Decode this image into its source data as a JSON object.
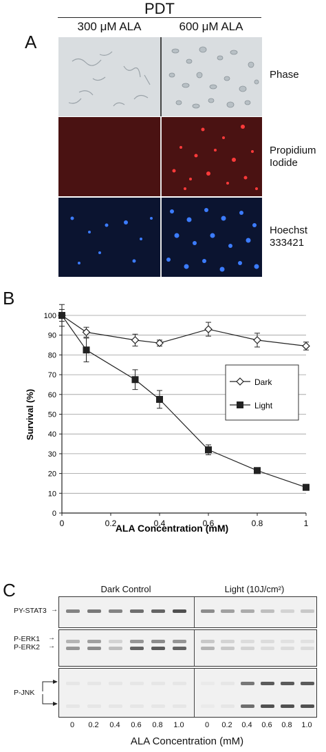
{
  "panel_a": {
    "letter": "A",
    "title": "PDT",
    "col_headers": [
      "300 μM ALA",
      "600 μM ALA"
    ],
    "rows": [
      {
        "label_lines": [
          "Phase"
        ]
      },
      {
        "label_lines": [
          "Propidium",
          "Iodide"
        ]
      },
      {
        "label_lines": [
          "Hoechst",
          "333421"
        ]
      }
    ]
  },
  "panel_b": {
    "letter": "B",
    "chart_data": {
      "type": "line",
      "xlabel": "ALA Concentration (mM)",
      "ylabel": "Survival (%)",
      "xlim": [
        0,
        1
      ],
      "ylim": [
        0,
        100
      ],
      "x_ticks": [
        "0",
        "0.2",
        "0.4",
        "0.6",
        "0.8",
        "1"
      ],
      "y_ticks": [
        "0",
        "10",
        "20",
        "30",
        "40",
        "50",
        "60",
        "70",
        "80",
        "90",
        "100"
      ],
      "grid": "horizontal",
      "legend": "center-right",
      "series": [
        {
          "name": "Dark",
          "marker": "diamond-open",
          "x": [
            0,
            0.1,
            0.3,
            0.4,
            0.6,
            0.8,
            1.0
          ],
          "y": [
            100,
            91.5,
            87.5,
            86,
            93,
            87.5,
            84.5
          ],
          "err": [
            3,
            2.5,
            3,
            1.5,
            3.5,
            3.5,
            2
          ]
        },
        {
          "name": "Light",
          "marker": "square-filled",
          "x": [
            0,
            0.1,
            0.3,
            0.4,
            0.6,
            0.8,
            1.0
          ],
          "y": [
            100,
            82.5,
            67.5,
            57.5,
            32,
            21.5,
            13
          ],
          "err": [
            5.5,
            6,
            5,
            4.5,
            2.5,
            1.5,
            1.5
          ]
        }
      ]
    }
  },
  "panel_c": {
    "letter": "C",
    "group_labels": [
      "Dark Control",
      "Light (10J/cm²)"
    ],
    "blots": [
      {
        "labels": [
          "PY-STAT3"
        ]
      },
      {
        "labels": [
          "P-ERK1",
          "P-ERK2"
        ]
      },
      {
        "labels": [
          "P-JNK"
        ]
      }
    ],
    "lane_labels": [
      "0",
      "0.2",
      "0.4",
      "0.6",
      "0.8",
      "1.0",
      "0",
      "0.2",
      "0.4",
      "0.6",
      "0.8",
      "1.0"
    ],
    "xlabel": "ALA Concentration (mM)"
  }
}
